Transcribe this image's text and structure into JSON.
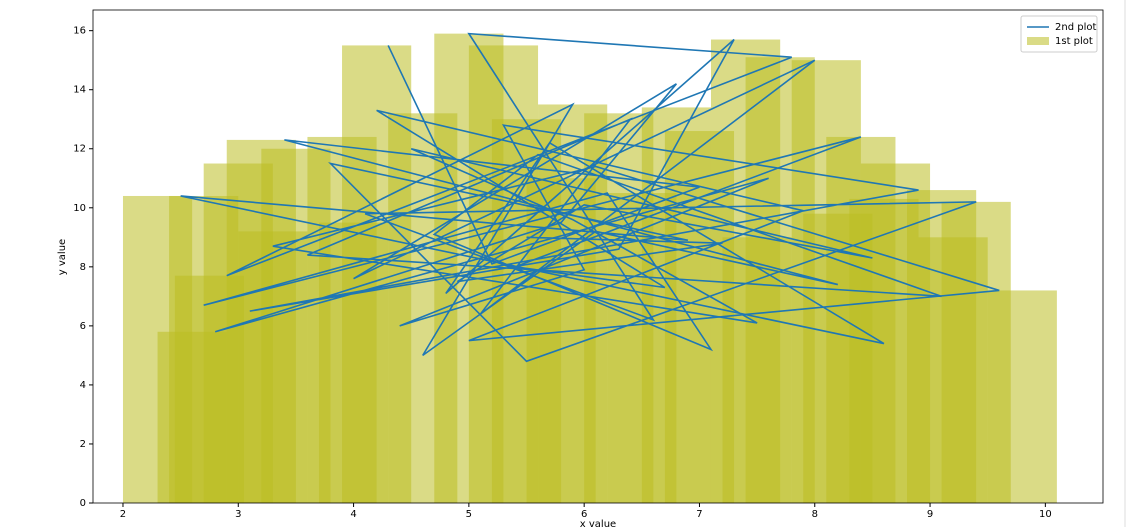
{
  "chart_data": {
    "type": "combo",
    "xlabel": "x value",
    "ylabel": "y value",
    "xlim": [
      1.74,
      10.5
    ],
    "ylim": [
      0,
      16.7
    ],
    "xticks": [
      2,
      3,
      4,
      5,
      6,
      7,
      8,
      9,
      10
    ],
    "yticks": [
      0,
      2,
      4,
      6,
      8,
      10,
      12,
      14,
      16
    ],
    "legend": "upper right",
    "series": [
      {
        "name": "2nd plot",
        "type": "line",
        "color": "#1f77b4",
        "x": [
          4.3,
          5.2,
          7.0,
          3.4,
          8.2,
          6.1,
          4.6,
          5.9,
          2.9,
          7.8,
          5.0,
          6.6,
          4.1,
          9.4,
          5.5,
          3.8,
          6.9,
          2.5,
          8.6,
          5.7,
          4.8,
          7.3,
          6.3,
          3.1,
          8.9,
          5.3,
          6.0,
          4.4,
          7.6,
          2.8,
          5.8,
          6.8,
          4.0,
          8.0,
          5.1,
          6.4,
          3.6,
          9.1,
          5.6,
          4.7,
          7.1,
          6.2,
          2.7,
          8.4,
          5.4,
          6.7,
          4.2,
          7.9,
          5.0,
          9.6,
          6.1,
          3.3,
          7.5,
          5.9,
          4.5,
          8.5,
          6.0,
          4.9,
          7.2,
          5.5
        ],
        "values": [
          15.5,
          8.1,
          10.7,
          12.3,
          7.4,
          9.2,
          5.0,
          13.5,
          7.7,
          15.1,
          15.9,
          6.2,
          9.8,
          10.2,
          4.8,
          11.5,
          8.9,
          10.4,
          5.4,
          12.2,
          7.1,
          15.7,
          8.6,
          6.5,
          10.6,
          12.8,
          7.9,
          6.0,
          11.0,
          5.8,
          9.5,
          14.2,
          7.6,
          15.0,
          6.4,
          13.0,
          8.4,
          7.0,
          11.8,
          9.1,
          5.2,
          10.5,
          6.7,
          12.4,
          8.0,
          7.3,
          13.3,
          9.9,
          5.5,
          7.2,
          11.4,
          8.7,
          6.1,
          9.6,
          12.0,
          8.3,
          10.1,
          7.5,
          8.8,
          9.0
        ]
      },
      {
        "name": "1st plot",
        "type": "bar",
        "color": "#bcbd22",
        "alpha": 0.55,
        "width": 0.6,
        "x": [
          2.3,
          2.7,
          2.6,
          2.75,
          3.0,
          3.2,
          3.5,
          3.9,
          4.2,
          4.6,
          5.0,
          5.3,
          5.5,
          5.9,
          6.3,
          6.8,
          7.0,
          7.4,
          7.7,
          8.1,
          8.4,
          8.7,
          9.1,
          9.4,
          9.8,
          9.2,
          8.6,
          4.0,
          5.8,
          6.5,
          7.5,
          3.3,
          8.2
        ],
        "values": [
          10.4,
          10.4,
          5.8,
          7.7,
          11.5,
          12.3,
          12.0,
          12.4,
          15.5,
          13.2,
          15.9,
          15.5,
          13.0,
          13.5,
          13.2,
          13.4,
          12.6,
          15.7,
          15.1,
          15.0,
          12.4,
          11.5,
          10.6,
          10.2,
          7.2,
          9.0,
          10.3,
          9.5,
          11.0,
          10.5,
          9.0,
          9.2,
          9.8
        ]
      }
    ]
  }
}
